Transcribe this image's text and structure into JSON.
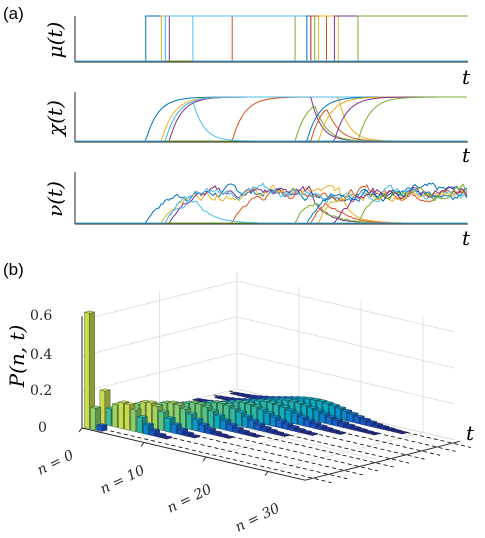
{
  "labels": {
    "panel_a": "(a)",
    "panel_b": "(b)"
  },
  "chart_data": [
    {
      "type": "line",
      "ylabel": "μ(t)",
      "xlabel": "t",
      "description": "Telegraph (on/off) switching signal per realization",
      "series_colors": [
        "#0072BD",
        "#D95319",
        "#EDB120",
        "#7E2F8E",
        "#77AC30",
        "#4DBEEE"
      ],
      "switch_times": [
        [
          0.18,
          1.0
        ],
        [
          0.4,
          1.0
        ],
        [
          0.22,
          0.67
        ],
        [
          0.24,
          0.6
        ],
        [
          0.56,
          0.61
        ],
        [
          0.23,
          1.0
        ],
        [
          0.59,
          1.0
        ],
        [
          0.6,
          0.64
        ],
        [
          0.62,
          1.0
        ],
        [
          0.66,
          1.0
        ],
        [
          0.72,
          1.0
        ],
        [
          0.23,
          0.3
        ]
      ],
      "ylim": [
        0,
        1
      ]
    },
    {
      "type": "line",
      "ylabel": "χ(t)",
      "xlabel": "t",
      "description": "Smooth relaxation response per realization",
      "ylim": [
        0,
        1
      ]
    },
    {
      "type": "line",
      "ylabel": "ν(t)",
      "xlabel": "t",
      "description": "Noisy stochastic trajectories per realization",
      "ylim": [
        0,
        1
      ]
    },
    {
      "type": "bar3d",
      "zlabel": "P(n, t)",
      "ylabel": "t",
      "z_ticks": [
        "0",
        "0.2",
        "0.4",
        "0.6"
      ],
      "z_tick_values": [
        0,
        0.2,
        0.4,
        0.6
      ],
      "n_ticks": [
        "n = 0",
        "n = 10",
        "n = 20",
        "n = 30"
      ],
      "n_tick_values": [
        0,
        10,
        20,
        30
      ],
      "zlim": [
        0,
        0.65
      ],
      "n_range": [
        0,
        35
      ],
      "t_slices": 10,
      "initial_distribution": {
        "n0": 0.64,
        "n1": 0.12,
        "n2": 0.03
      },
      "stationary_peak_n": 13,
      "stationary_peak_p": 0.12
    }
  ]
}
